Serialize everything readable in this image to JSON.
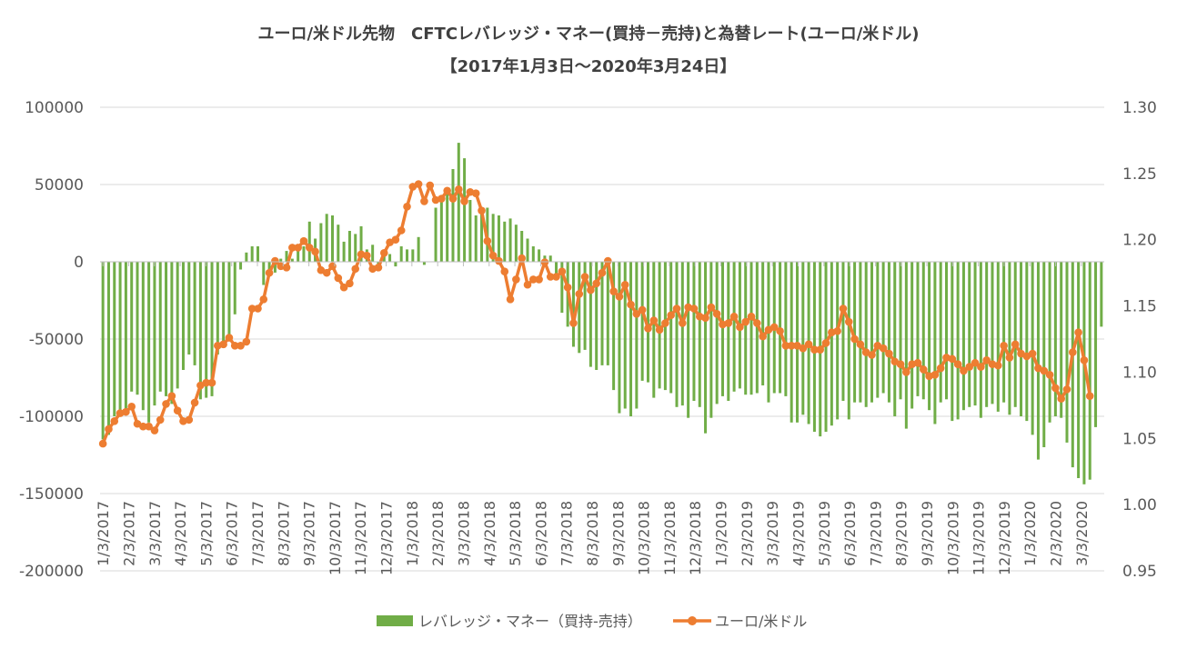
{
  "chart_data": {
    "type": "bar+line",
    "title_line1": "ユーロ/米ドル先物　CFTCレバレッジ・マネー(買持－売持)と為替レート(ユーロ/米ドル)",
    "title_line2": "【2017年1月3日～2020年3月24日】",
    "y_left": {
      "ticks": [
        "100000",
        "50000",
        "0",
        "-50000",
        "-100000",
        "-150000",
        "-200000"
      ],
      "ylim": [
        -200000,
        100000
      ]
    },
    "y_right": {
      "ticks": [
        "1.30",
        "1.25",
        "1.20",
        "1.15",
        "1.10",
        "1.05",
        "1.00",
        "0.95"
      ],
      "ylim": [
        0.95,
        1.3
      ]
    },
    "x_tick_labels": [
      "1/3/2017",
      "2/3/2017",
      "3/3/2017",
      "4/3/2017",
      "5/3/2017",
      "6/3/2017",
      "7/3/2017",
      "8/3/2017",
      "9/3/2017",
      "10/3/2017",
      "11/3/2017",
      "12/3/2017",
      "1/3/2018",
      "2/3/2018",
      "3/3/2018",
      "4/3/2018",
      "5/3/2018",
      "6/3/2018",
      "7/3/2018",
      "8/3/2018",
      "9/3/2018",
      "10/3/2018",
      "11/3/2018",
      "12/3/2018",
      "1/3/2019",
      "2/3/2019",
      "3/3/2019",
      "4/3/2019",
      "5/3/2019",
      "6/3/2019",
      "7/3/2019",
      "8/3/2019",
      "9/3/2019",
      "10/3/2019",
      "11/3/2019",
      "12/3/2019",
      "1/3/2020",
      "2/3/2020",
      "3/3/2020"
    ],
    "grid": true,
    "legend_position": "bottom",
    "series": [
      {
        "name": "レバレッジ・マネー（買持-売持）",
        "type": "bar",
        "axis": "left",
        "color": "#70AD47",
        "values": [
          -115000,
          -112000,
          -100000,
          -97000,
          -95000,
          -84000,
          -86000,
          -96000,
          -104000,
          -93000,
          -84000,
          -87000,
          -92000,
          -82000,
          -70000,
          -60000,
          -67000,
          -89000,
          -88000,
          -87000,
          -60000,
          -54000,
          -50000,
          -34000,
          -5000,
          6000,
          10000,
          10000,
          -15000,
          -8000,
          -7000,
          2000,
          7000,
          2000,
          8000,
          10000,
          26000,
          15000,
          25000,
          31000,
          30000,
          24000,
          13000,
          20000,
          18000,
          23000,
          8000,
          11000,
          -2000,
          5000,
          5000,
          -3000,
          10000,
          8000,
          8000,
          16000,
          -2000,
          0,
          35000,
          42000,
          46000,
          60000,
          77000,
          67000,
          40000,
          30000,
          33000,
          35000,
          31000,
          30000,
          26000,
          28000,
          24000,
          20000,
          15000,
          10000,
          8000,
          4000,
          4000,
          -8000,
          -33000,
          -42000,
          -55000,
          -59000,
          -57000,
          -68000,
          -70000,
          -67000,
          -67000,
          -83000,
          -98000,
          -95000,
          -100000,
          -95000,
          -77000,
          -78000,
          -88000,
          -82000,
          -83000,
          -85000,
          -94000,
          -93000,
          -101000,
          -90000,
          -94000,
          -111000,
          -101000,
          -92000,
          -87000,
          -90000,
          -84000,
          -82000,
          -86000,
          -86000,
          -85000,
          -80000,
          -91000,
          -85000,
          -85000,
          -87000,
          -104000,
          -104000,
          -99000,
          -105000,
          -110000,
          -113000,
          -110000,
          -106000,
          -102000,
          -90000,
          -102000,
          -91000,
          -91000,
          -94000,
          -91000,
          -88000,
          -85000,
          -91000,
          -100000,
          -89000,
          -108000,
          -95000,
          -87000,
          -89000,
          -96000,
          -105000,
          -91000,
          -89000,
          -103000,
          -102000,
          -96000,
          -94000,
          -93000,
          -101000,
          -94000,
          -92000,
          -97000,
          -91000,
          -99000,
          -94000,
          -100000,
          -103000,
          -112000,
          -128000,
          -120000,
          -104000,
          -100000,
          -101000,
          -117000,
          -133000,
          -140000,
          -144000,
          -141000,
          -107000,
          -42000
        ]
      },
      {
        "name": "ユーロ/米ドル",
        "type": "line",
        "axis": "right",
        "color": "#ED7D31",
        "values": [
          1.046,
          1.057,
          1.063,
          1.069,
          1.07,
          1.074,
          1.061,
          1.059,
          1.059,
          1.056,
          1.064,
          1.076,
          1.082,
          1.071,
          1.063,
          1.064,
          1.077,
          1.09,
          1.092,
          1.092,
          1.12,
          1.121,
          1.126,
          1.12,
          1.12,
          1.123,
          1.148,
          1.148,
          1.155,
          1.175,
          1.184,
          1.18,
          1.179,
          1.194,
          1.194,
          1.199,
          1.194,
          1.191,
          1.177,
          1.175,
          1.18,
          1.171,
          1.164,
          1.167,
          1.178,
          1.189,
          1.188,
          1.178,
          1.179,
          1.19,
          1.198,
          1.2,
          1.207,
          1.225,
          1.24,
          1.242,
          1.229,
          1.241,
          1.23,
          1.231,
          1.237,
          1.231,
          1.238,
          1.229,
          1.236,
          1.235,
          1.222,
          1.199,
          1.188,
          1.184,
          1.176,
          1.155,
          1.17,
          1.186,
          1.166,
          1.17,
          1.17,
          1.183,
          1.172,
          1.172,
          1.176,
          1.164,
          1.137,
          1.159,
          1.172,
          1.162,
          1.167,
          1.175,
          1.184,
          1.161,
          1.157,
          1.166,
          1.151,
          1.144,
          1.147,
          1.133,
          1.139,
          1.132,
          1.137,
          1.143,
          1.148,
          1.137,
          1.149,
          1.148,
          1.142,
          1.141,
          1.149,
          1.144,
          1.136,
          1.137,
          1.142,
          1.134,
          1.138,
          1.142,
          1.137,
          1.127,
          1.132,
          1.134,
          1.131,
          1.12,
          1.12,
          1.12,
          1.118,
          1.121,
          1.117,
          1.117,
          1.122,
          1.13,
          1.131,
          1.148,
          1.138,
          1.125,
          1.121,
          1.115,
          1.113,
          1.12,
          1.118,
          1.114,
          1.108,
          1.106,
          1.1,
          1.106,
          1.107,
          1.102,
          1.097,
          1.098,
          1.103,
          1.111,
          1.11,
          1.106,
          1.101,
          1.104,
          1.107,
          1.104,
          1.109,
          1.106,
          1.105,
          1.12,
          1.111,
          1.121,
          1.114,
          1.112,
          1.114,
          1.103,
          1.101,
          1.098,
          1.088,
          1.08,
          1.087,
          1.115,
          1.13,
          1.109,
          1.082
        ]
      }
    ]
  }
}
